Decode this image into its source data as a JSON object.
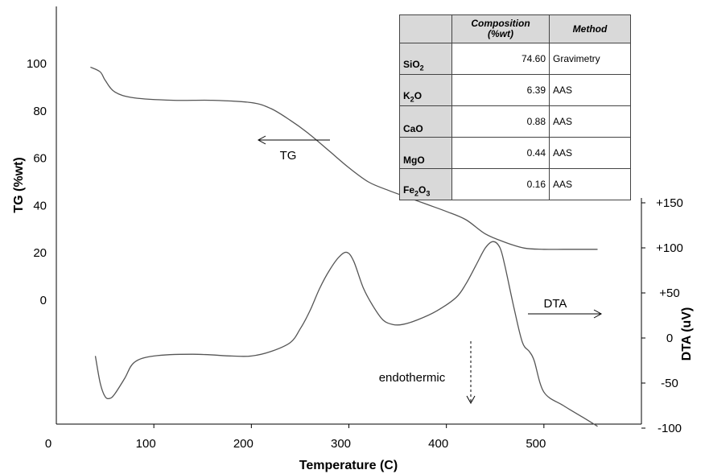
{
  "chart_data": {
    "type": "line",
    "xlabel": "Temperature (C)",
    "ylabel": "TG (%wt)",
    "y2label": "DTA (uV)",
    "xlim": [
      0,
      600
    ],
    "ylim": [
      -50,
      100
    ],
    "y2lim": [
      -100,
      150
    ],
    "x_ticks": [
      "0",
      "100",
      "200",
      "300",
      "400",
      "500"
    ],
    "y_ticks": [
      "0",
      "20",
      "40",
      "60",
      "80",
      "100"
    ],
    "y2_ticks": [
      "-100",
      "-50",
      "0",
      "+50",
      "+100",
      "+150"
    ],
    "series": [
      {
        "name": "TG",
        "axis": "left",
        "x": [
          35,
          45,
          50,
          60,
          80,
          120,
          160,
          200,
          220,
          240,
          260,
          280,
          300,
          320,
          340,
          360,
          380,
          400,
          420,
          440,
          460,
          480,
          500,
          520,
          540,
          555
        ],
        "y": [
          98.5,
          96.5,
          93,
          88,
          85.5,
          84.5,
          84.5,
          83.5,
          81,
          76,
          70,
          63,
          56,
          50,
          46.5,
          43.5,
          40.5,
          37.5,
          34,
          28,
          24.5,
          22,
          21.5,
          21.5,
          21.5,
          21.5
        ]
      },
      {
        "name": "DTA",
        "axis": "right",
        "x": [
          40,
          45,
          50,
          55,
          60,
          70,
          80,
          100,
          140,
          180,
          200,
          220,
          240,
          250,
          260,
          270,
          280,
          290,
          298,
          305,
          315,
          325,
          335,
          345,
          355,
          370,
          390,
          410,
          420,
          430,
          440,
          448,
          455,
          460,
          470,
          478,
          485,
          490,
          500,
          520,
          540,
          555
        ],
        "y": [
          -20,
          -50,
          -65,
          -67,
          -62,
          -45,
          -27,
          -20,
          -18,
          -20,
          -20,
          -15,
          -5,
          10,
          30,
          55,
          75,
          90,
          95,
          85,
          55,
          35,
          20,
          15,
          15,
          20,
          30,
          45,
          60,
          80,
          100,
          107,
          100,
          80,
          30,
          -5,
          -15,
          -25,
          -60,
          -75,
          -88,
          -98
        ]
      }
    ],
    "annotations": [
      "TG",
      "DTA",
      "endothermic"
    ]
  },
  "table": {
    "headers": [
      "",
      "Composition\n(%wt)",
      "Method"
    ],
    "rows": [
      {
        "el": "SiO",
        "sub": "2",
        "el_after": "",
        "value": "74.60",
        "method": "Gravimetry"
      },
      {
        "el": "K",
        "sub": "2",
        "el_after": "O",
        "value": "6.39",
        "method": "AAS"
      },
      {
        "el": "CaO",
        "sub": "",
        "el_after": "",
        "value": "0.88",
        "method": "AAS"
      },
      {
        "el": "MgO",
        "sub": "",
        "el_after": "",
        "value": "0.44",
        "method": "AAS"
      },
      {
        "el": "Fe",
        "sub": "2",
        "el_after": "O",
        "sub2": "3",
        "value": "0.16",
        "method": "AAS"
      }
    ]
  }
}
